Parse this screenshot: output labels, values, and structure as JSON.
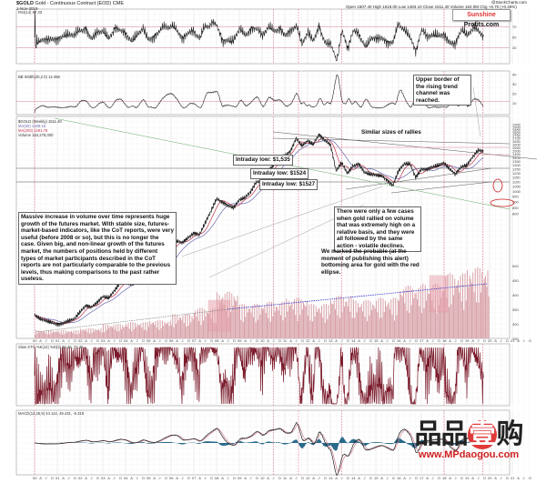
{
  "header": {
    "symbol": "$GOLD",
    "title": "Gold - Continuous Contract (EOD) CME",
    "date": "1-Nov-2019",
    "quote": "Open 1507.40  High 1519.00  Low 1483.10  Close 1511.40  Volume 164.0M  Chg +6.70 (+0.45%)",
    "credit": "@StockCharts.com"
  },
  "logo": {
    "part1": "Sunshine",
    "part2": "Profits.com"
  },
  "watermark": {
    "text": "品品",
    "circle": "壹",
    "text2": "购",
    "url": "www.MPdaogou.com"
  },
  "panels": {
    "rsi_label": "RSI(14) 67.33",
    "bbw_label": "BB Width(20,2.0) 12.456",
    "price_label": "$GOLD (Weekly) 1511.40",
    "ma1_label": "MA(50) 1348.15",
    "ma2_label": "MA(200) 1291.76",
    "volume_label": "Volume 164,278,300",
    "stoch_label": "Slow STO %K(14) %D(3) 60.48, 77.45",
    "macd_label": "MACD(12,26,9) 44.114, 49.431, -5.318"
  },
  "annotations": {
    "volume_note": "Massive increase in volume over time represents huge growth of the futures market. With stable size, futures-market-based indicators, like the CoT reports, were very useful (before 2008 or so), but this is no longer the case. Given big, and non-linear growth of the futures market, the numbers of positions held by different types of market participants described in the CoT reports are not particularly comparable to the previous levels, thus making comparisons to the past rather useless.",
    "low1": "Intraday low: $1,535",
    "low2": "Intraday low: $1524",
    "low3": "Intraday low: $1527",
    "volume_rally_note": "There were only a few cases when gold rallied on volume that was extremely high on a relative basis, and they were all followed by the same action - volatile declines.",
    "bottom_note": "We marked the probable (at the moment of publishing this alert) bottoming area for gold with the red ellipse.",
    "rallies_note": "Similar sizes of rallies",
    "channel_note": "Upper border of the rising trend channel was reached."
  },
  "colors": {
    "price": "#222222",
    "ma_red": "#c0304a",
    "ma_blue": "#6a6ab0",
    "volume": "#d9a3aa",
    "highlight": "#e8a0aa",
    "macd_hist": "#2a6a8a",
    "ellipse": "#cc2222",
    "trend_blue": "#3333cc"
  },
  "chart_data": [
    {
      "type": "line",
      "title": "$GOLD (Weekly)",
      "scale": "log",
      "x_tick_labels": [
        "00",
        "01",
        "02",
        "03",
        "04",
        "05",
        "06",
        "07",
        "08",
        "09",
        "10",
        "11",
        "12",
        "13",
        "14",
        "15",
        "16",
        "17",
        "18",
        "19",
        "20",
        "21"
      ],
      "y_tick_labels": [
        "1950",
        "1900",
        "1850",
        "1800",
        "1750",
        "1700",
        "1650",
        "1600",
        "1550",
        "1500",
        "1450",
        "1400",
        "1350",
        "1300",
        "1250",
        "1200",
        "1150",
        "1100",
        "1050",
        "1000",
        "950",
        "900",
        "850",
        "800"
      ],
      "x_start": 2000,
      "x_step": 0.25,
      "price": [
        290,
        280,
        275,
        270,
        265,
        268,
        275,
        280,
        300,
        320,
        315,
        330,
        350,
        345,
        370,
        400,
        410,
        395,
        405,
        440,
        430,
        430,
        460,
        510,
        570,
        610,
        600,
        630,
        660,
        650,
        730,
        820,
        930,
        900,
        870,
        850,
        920,
        940,
        1000,
        1100,
        1110,
        1220,
        1300,
        1400,
        1430,
        1500,
        1700,
        1580,
        1660,
        1600,
        1770,
        1670,
        1600,
        1230,
        1330,
        1200,
        1290,
        1320,
        1210,
        1190,
        1180,
        1170,
        1120,
        1060,
        1230,
        1320,
        1320,
        1150,
        1250,
        1250,
        1280,
        1300,
        1330,
        1250,
        1190,
        1280,
        1300,
        1410,
        1510,
        1500
      ]
    },
    {
      "type": "bar",
      "title": "Volume",
      "unit": "K",
      "y_tick_labels": [
        "500",
        "450",
        "400",
        "350",
        "300",
        "250"
      ],
      "categories": [
        "2000",
        "2001",
        "2002",
        "2003",
        "2004",
        "2005",
        "2006",
        "2007",
        "2008",
        "2009",
        "2010",
        "2011",
        "2012",
        "2013",
        "2014",
        "2015",
        "2016",
        "2017",
        "2018",
        "2019"
      ],
      "values": [
        40,
        40,
        50,
        70,
        80,
        90,
        120,
        150,
        230,
        170,
        180,
        200,
        170,
        210,
        190,
        200,
        260,
        270,
        320,
        350
      ]
    }
  ]
}
